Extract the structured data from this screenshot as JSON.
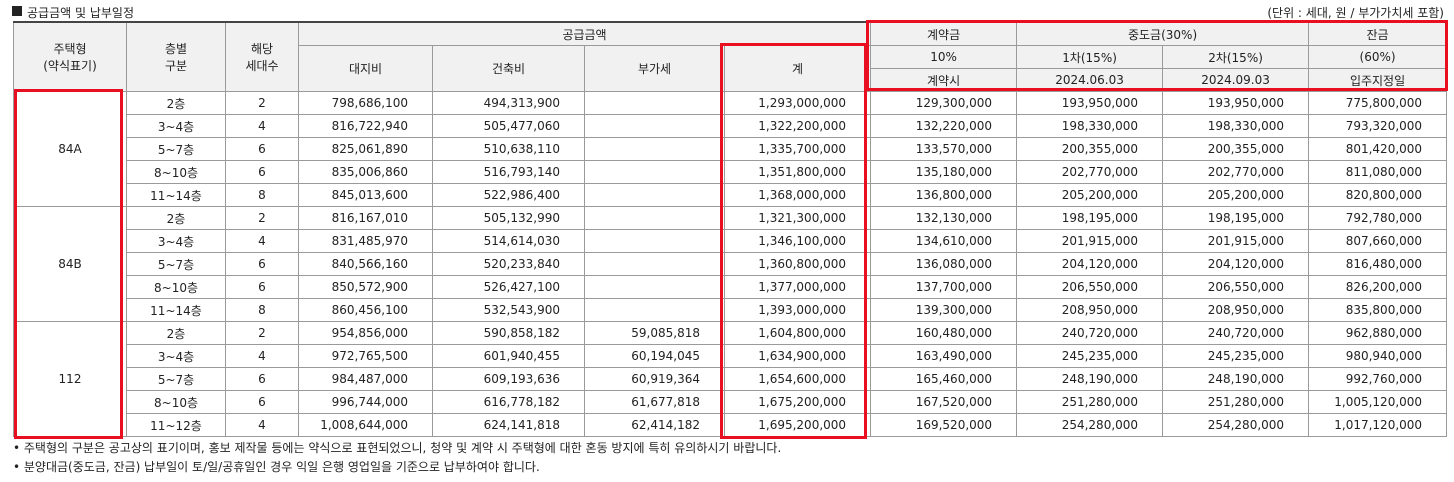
{
  "title": "공급금액 및 납부일정",
  "unit_note": "(단위 : 세대, 원 / 부가가치세 포함)",
  "headers": {
    "type_line1": "주택형",
    "type_line2": "(약식표기)",
    "floor_line1": "층별",
    "floor_line2": "구분",
    "units_line1": "해당",
    "units_line2": "세대수",
    "supply": "공급금액",
    "land": "대지비",
    "building": "건축비",
    "vat": "부가세",
    "total": "계",
    "contract": "계약금",
    "contract_pct": "10%",
    "contract_when": "계약시",
    "middle": "중도금(30%)",
    "mid1": "1차(15%)",
    "mid1_date": "2024.06.03",
    "mid2": "2차(15%)",
    "mid2_date": "2024.09.03",
    "balance": "잔금",
    "balance_pct": "(60%)",
    "balance_when": "입주지정일"
  },
  "groups": [
    {
      "type": "84A",
      "rows": [
        {
          "floor": "2층",
          "units": "2",
          "land": "798,686,100",
          "building": "494,313,900",
          "vat": "",
          "total": "1,293,000,000",
          "contract": "129,300,000",
          "mid1": "193,950,000",
          "mid2": "193,950,000",
          "balance": "775,800,000"
        },
        {
          "floor": "3~4층",
          "units": "4",
          "land": "816,722,940",
          "building": "505,477,060",
          "vat": "",
          "total": "1,322,200,000",
          "contract": "132,220,000",
          "mid1": "198,330,000",
          "mid2": "198,330,000",
          "balance": "793,320,000"
        },
        {
          "floor": "5~7층",
          "units": "6",
          "land": "825,061,890",
          "building": "510,638,110",
          "vat": "",
          "total": "1,335,700,000",
          "contract": "133,570,000",
          "mid1": "200,355,000",
          "mid2": "200,355,000",
          "balance": "801,420,000"
        },
        {
          "floor": "8~10층",
          "units": "6",
          "land": "835,006,860",
          "building": "516,793,140",
          "vat": "",
          "total": "1,351,800,000",
          "contract": "135,180,000",
          "mid1": "202,770,000",
          "mid2": "202,770,000",
          "balance": "811,080,000"
        },
        {
          "floor": "11~14층",
          "units": "8",
          "land": "845,013,600",
          "building": "522,986,400",
          "vat": "",
          "total": "1,368,000,000",
          "contract": "136,800,000",
          "mid1": "205,200,000",
          "mid2": "205,200,000",
          "balance": "820,800,000"
        }
      ]
    },
    {
      "type": "84B",
      "rows": [
        {
          "floor": "2층",
          "units": "2",
          "land": "816,167,010",
          "building": "505,132,990",
          "vat": "",
          "total": "1,321,300,000",
          "contract": "132,130,000",
          "mid1": "198,195,000",
          "mid2": "198,195,000",
          "balance": "792,780,000"
        },
        {
          "floor": "3~4층",
          "units": "4",
          "land": "831,485,970",
          "building": "514,614,030",
          "vat": "",
          "total": "1,346,100,000",
          "contract": "134,610,000",
          "mid1": "201,915,000",
          "mid2": "201,915,000",
          "balance": "807,660,000"
        },
        {
          "floor": "5~7층",
          "units": "6",
          "land": "840,566,160",
          "building": "520,233,840",
          "vat": "",
          "total": "1,360,800,000",
          "contract": "136,080,000",
          "mid1": "204,120,000",
          "mid2": "204,120,000",
          "balance": "816,480,000"
        },
        {
          "floor": "8~10층",
          "units": "6",
          "land": "850,572,900",
          "building": "526,427,100",
          "vat": "",
          "total": "1,377,000,000",
          "contract": "137,700,000",
          "mid1": "206,550,000",
          "mid2": "206,550,000",
          "balance": "826,200,000"
        },
        {
          "floor": "11~14층",
          "units": "8",
          "land": "860,456,100",
          "building": "532,543,900",
          "vat": "",
          "total": "1,393,000,000",
          "contract": "139,300,000",
          "mid1": "208,950,000",
          "mid2": "208,950,000",
          "balance": "835,800,000"
        }
      ]
    },
    {
      "type": "112",
      "rows": [
        {
          "floor": "2층",
          "units": "2",
          "land": "954,856,000",
          "building": "590,858,182",
          "vat": "59,085,818",
          "total": "1,604,800,000",
          "contract": "160,480,000",
          "mid1": "240,720,000",
          "mid2": "240,720,000",
          "balance": "962,880,000"
        },
        {
          "floor": "3~4층",
          "units": "4",
          "land": "972,765,500",
          "building": "601,940,455",
          "vat": "60,194,045",
          "total": "1,634,900,000",
          "contract": "163,490,000",
          "mid1": "245,235,000",
          "mid2": "245,235,000",
          "balance": "980,940,000"
        },
        {
          "floor": "5~7층",
          "units": "6",
          "land": "984,487,000",
          "building": "609,193,636",
          "vat": "60,919,364",
          "total": "1,654,600,000",
          "contract": "165,460,000",
          "mid1": "248,190,000",
          "mid2": "248,190,000",
          "balance": "992,760,000"
        },
        {
          "floor": "8~10층",
          "units": "6",
          "land": "996,744,000",
          "building": "616,778,182",
          "vat": "61,677,818",
          "total": "1,675,200,000",
          "contract": "167,520,000",
          "mid1": "251,280,000",
          "mid2": "251,280,000",
          "balance": "1,005,120,000"
        },
        {
          "floor": "11~12층",
          "units": "4",
          "land": "1,008,644,000",
          "building": "624,141,818",
          "vat": "62,414,182",
          "total": "1,695,200,000",
          "contract": "169,520,000",
          "mid1": "254,280,000",
          "mid2": "254,280,000",
          "balance": "1,017,120,000"
        }
      ]
    }
  ],
  "notes": [
    "• 주택형의 구분은 공고상의 표기이며, 홍보 제작물 등에는 약식으로 표현되었으니, 청약 및 계약 시 주택형에 대한 혼동 방지에 특히 유의하시기 바랍니다.",
    "• 분양대금(중도금, 잔금) 납부일이 토/일/공휴일인 경우 익일 은행 영업일을 기준으로 납부하여야 합니다."
  ],
  "highlight_color": "#e81020"
}
